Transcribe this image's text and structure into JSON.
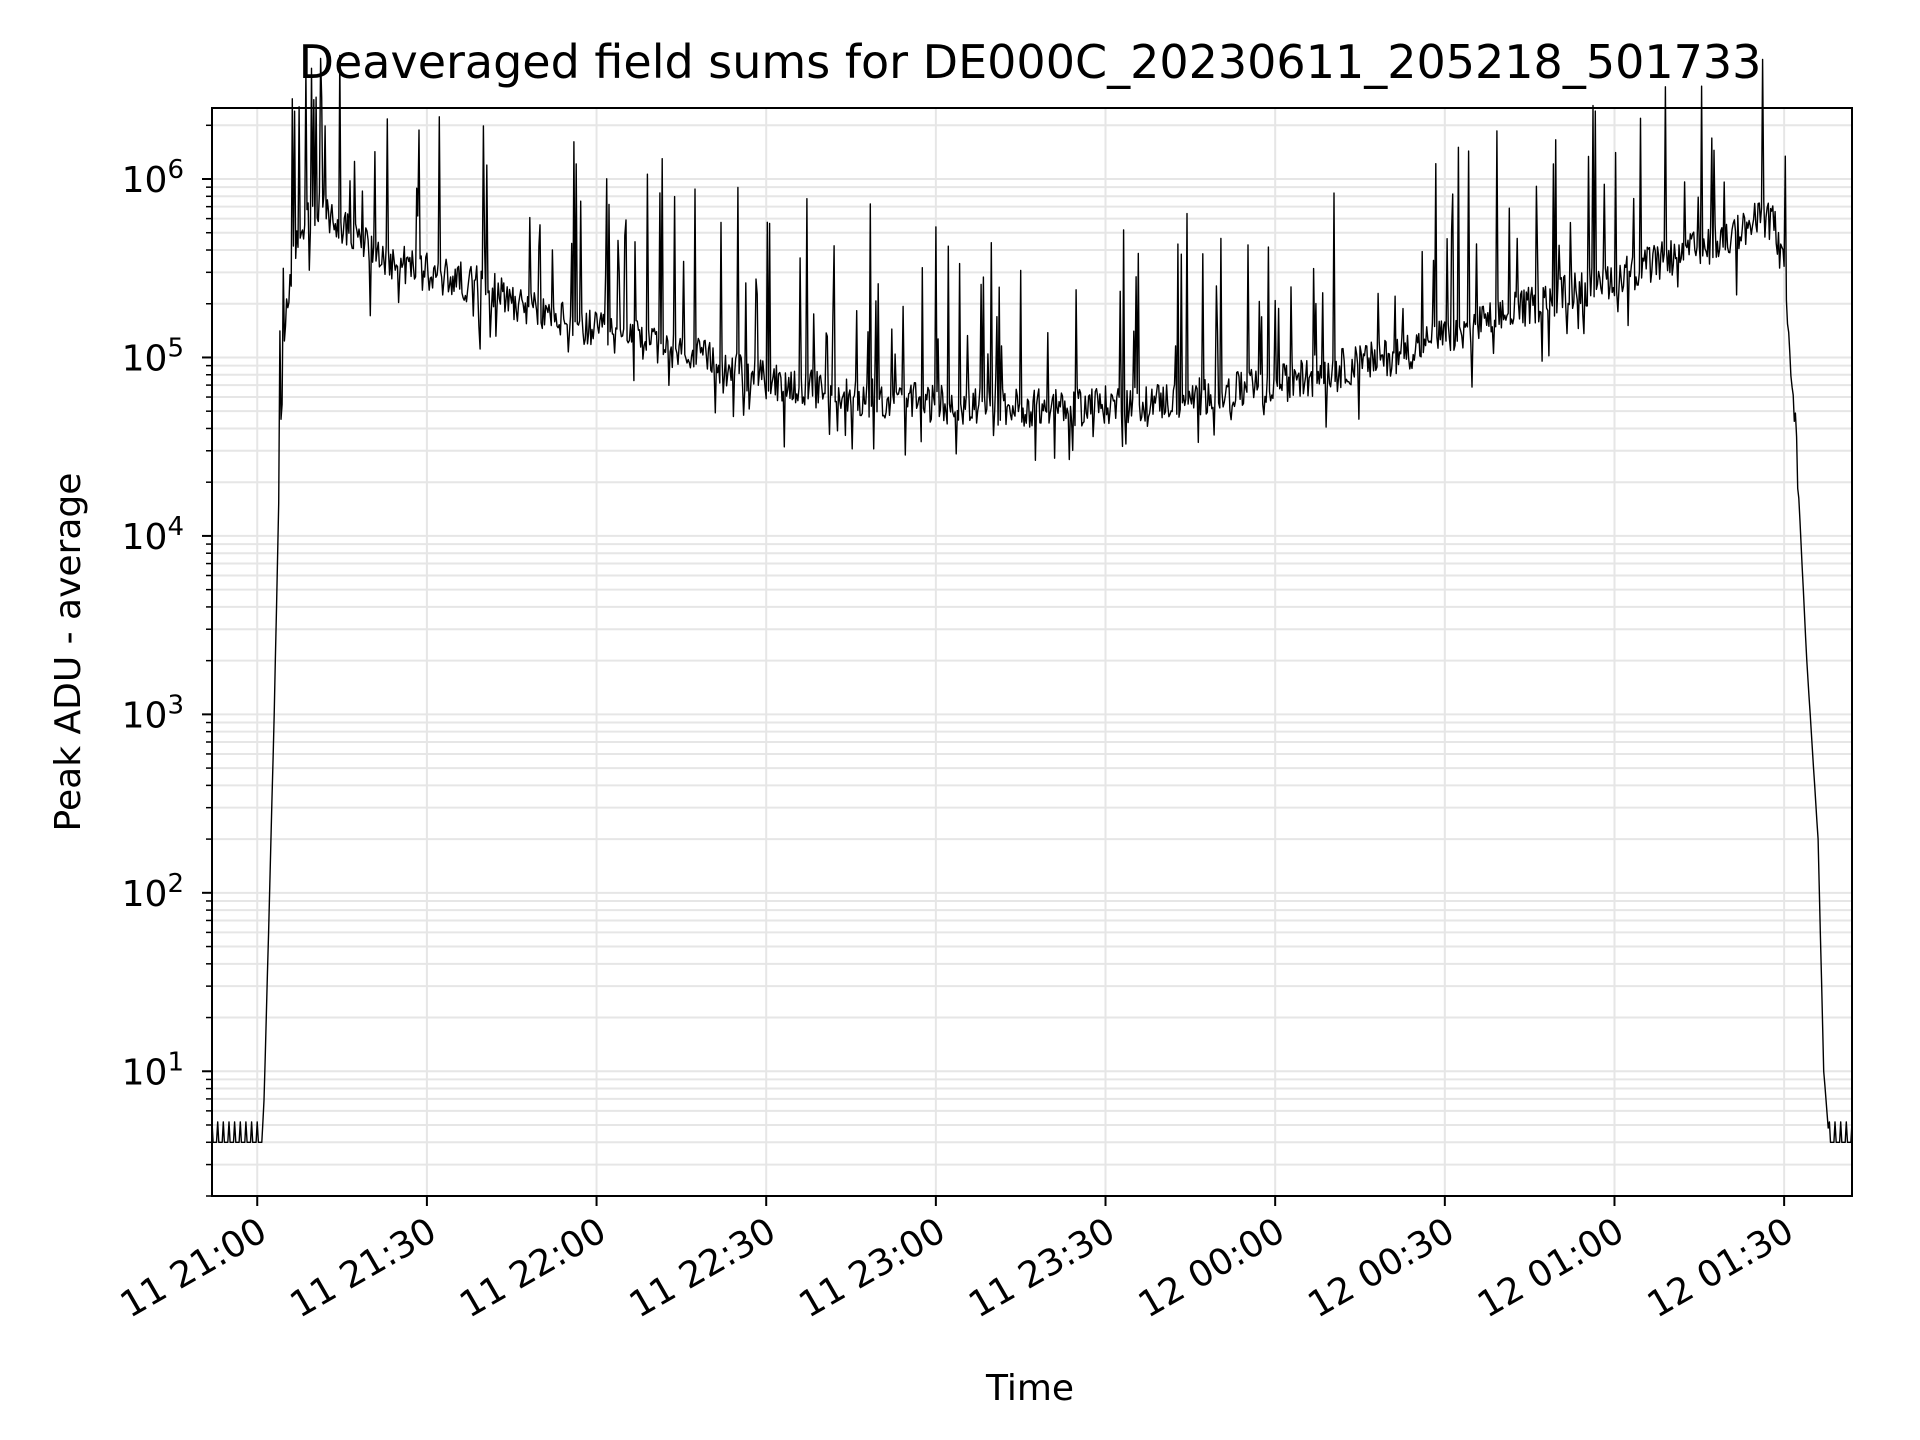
{
  "chart_data": {
    "type": "line",
    "title": "Deaveraged field sums for DE000C_20230611_205218_501733",
    "xlabel": "Time",
    "ylabel": "Peak ADU - average",
    "yscale": "log",
    "ylim": [
      2,
      2500000
    ],
    "xlim": [
      "2023-06-11 20:52",
      "2023-06-12 01:42"
    ],
    "grid": true,
    "line_color": "#000000",
    "x_ticks": [
      {
        "t": "2023-06-11 21:00",
        "label": "11 21:00"
      },
      {
        "t": "2023-06-11 21:30",
        "label": "11 21:30"
      },
      {
        "t": "2023-06-11 22:00",
        "label": "11 22:00"
      },
      {
        "t": "2023-06-11 22:30",
        "label": "11 22:30"
      },
      {
        "t": "2023-06-11 23:00",
        "label": "11 23:00"
      },
      {
        "t": "2023-06-11 23:30",
        "label": "11 23:30"
      },
      {
        "t": "2023-06-12 00:00",
        "label": "12 00:00"
      },
      {
        "t": "2023-06-12 00:30",
        "label": "12 00:30"
      },
      {
        "t": "2023-06-12 01:00",
        "label": "12 01:00"
      },
      {
        "t": "2023-06-12 01:30",
        "label": "12 01:30"
      }
    ],
    "y_ticks": [
      {
        "value": 10,
        "base": "10",
        "exp": "1"
      },
      {
        "value": 100,
        "base": "10",
        "exp": "2"
      },
      {
        "value": 1000,
        "base": "10",
        "exp": "3"
      },
      {
        "value": 10000,
        "base": "10",
        "exp": "4"
      },
      {
        "value": 100000,
        "base": "10",
        "exp": "5"
      },
      {
        "value": 1000000,
        "base": "10",
        "exp": "6"
      }
    ],
    "series": [
      {
        "x": [
          "2023-06-11 20:52",
          "2023-06-11 21:01",
          "2023-06-11 21:02",
          "2023-06-11 21:03",
          "2023-06-11 21:04",
          "2023-06-11 21:05",
          "2023-06-11 21:06",
          "2023-06-11 21:07",
          "2023-06-11 21:08",
          "2023-06-11 21:10",
          "2023-06-11 21:12",
          "2023-06-11 21:14",
          "2023-06-11 21:18",
          "2023-06-11 21:24",
          "2023-06-11 21:30",
          "2023-06-11 21:40",
          "2023-06-11 21:50",
          "2023-06-11 22:00",
          "2023-06-11 22:10",
          "2023-06-11 22:20",
          "2023-06-11 22:30",
          "2023-06-11 22:40",
          "2023-06-11 22:50",
          "2023-06-11 23:00",
          "2023-06-11 23:10",
          "2023-06-11 23:20",
          "2023-06-11 23:30",
          "2023-06-11 23:40",
          "2023-06-11 23:50",
          "2023-06-12 00:00",
          "2023-06-12 00:10",
          "2023-06-12 00:20",
          "2023-06-12 00:30",
          "2023-06-12 00:40",
          "2023-06-12 00:50",
          "2023-06-12 01:00",
          "2023-06-12 01:10",
          "2023-06-12 01:20",
          "2023-06-12 01:26",
          "2023-06-12 01:28",
          "2023-06-12 01:30",
          "2023-06-12 01:32",
          "2023-06-12 01:34",
          "2023-06-12 01:36",
          "2023-06-12 01:37",
          "2023-06-12 01:38",
          "2023-06-12 01:39",
          "2023-06-12 01:42"
        ],
        "y": [
          4,
          4,
          60,
          1000,
          30000,
          180000,
          300000,
          450000,
          550000,
          680000,
          650000,
          550000,
          450000,
          350000,
          300000,
          250000,
          180000,
          140000,
          120000,
          95000,
          75000,
          65000,
          58000,
          55000,
          53000,
          52000,
          54000,
          57000,
          62000,
          70000,
          85000,
          100000,
          130000,
          170000,
          220000,
          280000,
          360000,
          460000,
          600000,
          600000,
          300000,
          40000,
          2000,
          200,
          10,
          4,
          4,
          4
        ]
      }
    ]
  }
}
